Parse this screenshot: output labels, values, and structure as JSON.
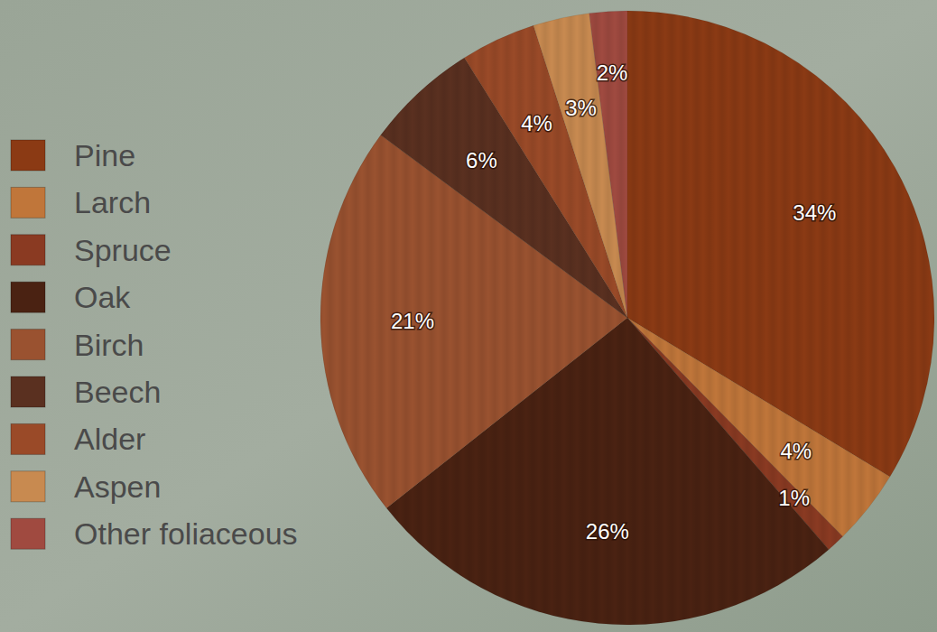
{
  "chart_data": {
    "type": "pie",
    "categories": [
      "Pine",
      "Larch",
      "Spruce",
      "Oak",
      "Birch",
      "Beech",
      "Alder",
      "Aspen",
      "Other foliaceous"
    ],
    "values": [
      34,
      4,
      1,
      26,
      21,
      6,
      4,
      3,
      2
    ],
    "value_labels": [
      "34%",
      "4%",
      "1%",
      "26%",
      "21%",
      "6%",
      "4%",
      "3%",
      "2%"
    ],
    "colors": [
      "#8b3a14",
      "#c0763a",
      "#8a3a22",
      "#4a2212",
      "#9a5230",
      "#5a3020",
      "#9a4a28",
      "#c88a50",
      "#a04a40"
    ],
    "data_labels": true,
    "legend": "left"
  }
}
